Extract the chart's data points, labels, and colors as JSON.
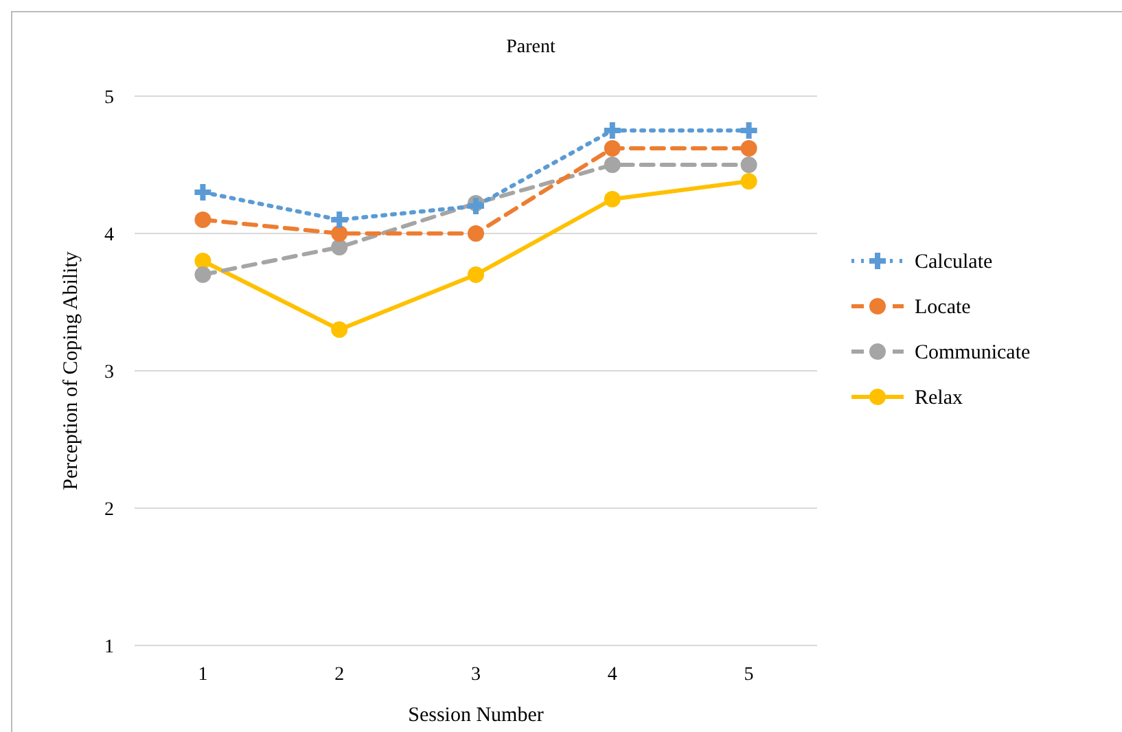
{
  "chart_data": {
    "type": "line",
    "title": "Parent",
    "xlabel": "Session Number",
    "ylabel": "Perception of Coping Ability",
    "categories": [
      "1",
      "2",
      "3",
      "4",
      "5"
    ],
    "series": [
      {
        "name": "Calculate",
        "color": "#5b9bd5",
        "values": [
          4.3,
          4.1,
          4.2,
          4.75,
          4.75
        ],
        "line_style": "dotted",
        "marker": "cross"
      },
      {
        "name": "Locate",
        "color": "#ed7d31",
        "values": [
          4.1,
          4.0,
          4.0,
          4.62,
          4.62
        ],
        "line_style": "dashed",
        "marker": "circle"
      },
      {
        "name": "Communicate",
        "color": "#a5a5a5",
        "values": [
          3.7,
          3.9,
          4.22,
          4.5,
          4.5
        ],
        "line_style": "dashed",
        "marker": "circle"
      },
      {
        "name": "Relax",
        "color": "#ffc000",
        "values": [
          3.8,
          3.3,
          3.7,
          4.25,
          4.38
        ],
        "line_style": "solid",
        "marker": "circle"
      }
    ],
    "ylim": [
      1,
      5
    ],
    "yticks": [
      1,
      2,
      3,
      4,
      5
    ],
    "grid": "y",
    "legend": "right"
  }
}
